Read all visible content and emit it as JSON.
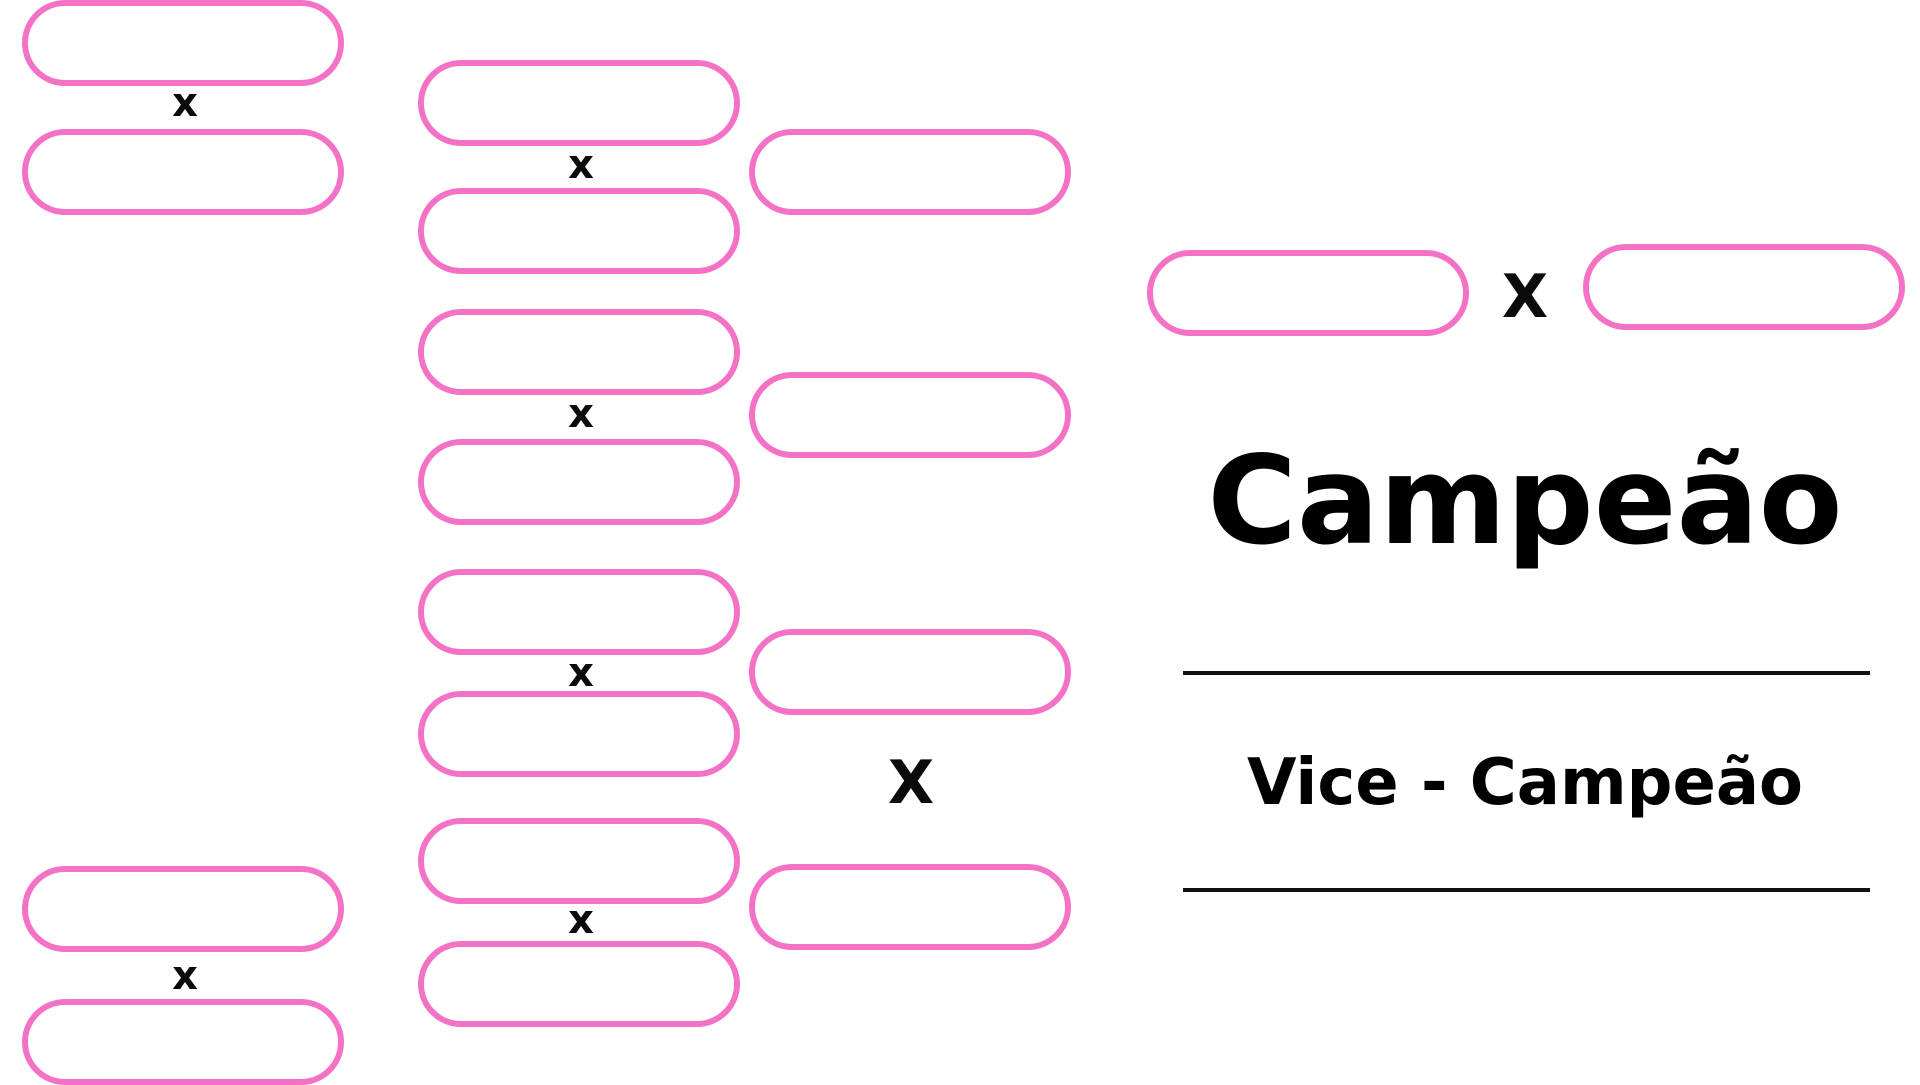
{
  "bracket": {
    "versus_label": "x",
    "final_versus_label": "X"
  },
  "podium": {
    "champion_label": "Campeão",
    "runner_up_label": "Vice - Campeão"
  },
  "colors": {
    "slot_border": "#f472c6",
    "text": "#000000",
    "background": "#ffffff"
  }
}
